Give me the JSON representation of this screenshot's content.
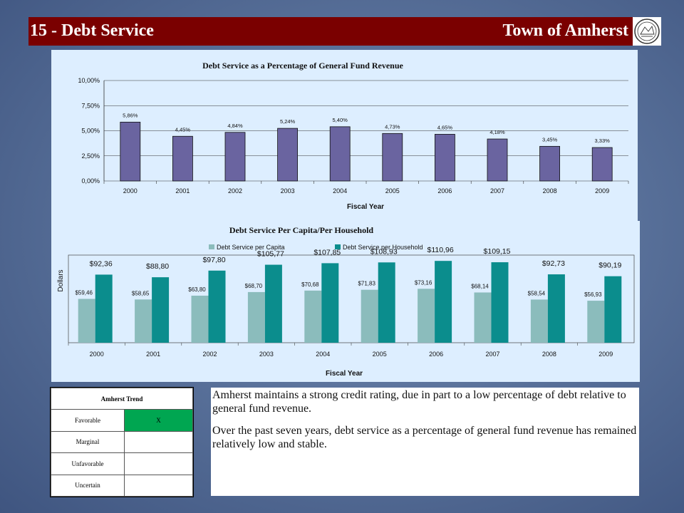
{
  "header": {
    "title": "15 - Debt Service",
    "town": "Town of Amherst",
    "seal_icon": "town-seal-icon"
  },
  "chart_data": [
    {
      "type": "bar",
      "title": "Debt Service as a Percentage of General Fund Revenue",
      "xlabel": "Fiscal Year",
      "ylabel": "",
      "categories": [
        "2000",
        "2001",
        "2002",
        "2003",
        "2004",
        "2005",
        "2006",
        "2007",
        "2008",
        "2009"
      ],
      "values": [
        5.86,
        4.45,
        4.84,
        5.24,
        5.4,
        4.73,
        4.65,
        4.18,
        3.45,
        3.33
      ],
      "data_labels": [
        "5,86%",
        "4,45%",
        "4,84%",
        "5,24%",
        "5,40%",
        "4,73%",
        "4,65%",
        "4,18%",
        "3,45%",
        "3,33%"
      ],
      "ylim": [
        0,
        10
      ],
      "yticks": [
        0,
        2.5,
        5,
        7.5,
        10
      ],
      "ytick_labels": [
        "0,00%",
        "2,50%",
        "5,00%",
        "7,50%",
        "10,00%"
      ],
      "grid": true,
      "color": "#6a64a0"
    },
    {
      "type": "bar",
      "title": "Debt Service Per Capita/Per Household",
      "xlabel": "Fiscal Year",
      "ylabel": "Dollars",
      "legend": "top",
      "categories": [
        "2000",
        "2001",
        "2002",
        "2003",
        "2004",
        "2005",
        "2006",
        "2007",
        "2008",
        "2009"
      ],
      "ylim": [
        0,
        115
      ],
      "series": [
        {
          "name": "Debt Service per Capita",
          "color": "#8bbcbc",
          "values": [
            59.46,
            58.65,
            63.8,
            68.7,
            70.68,
            71.83,
            73.16,
            68.14,
            58.54,
            56.93
          ],
          "labels": [
            "$59,46",
            "$58,65",
            "$63,80",
            "$68,70",
            "$70,68",
            "$71,83",
            "$73,16",
            "$68,14",
            "$58,54",
            "$56,93"
          ]
        },
        {
          "name": "Debt Service per Household",
          "color": "#0b8d8d",
          "values": [
            92.36,
            88.8,
            97.8,
            105.77,
            107.85,
            108.93,
            110.96,
            109.15,
            92.73,
            90.19
          ],
          "labels": [
            "$92,36",
            "$88,80",
            "$97,80",
            "$105,77",
            "$107,85",
            "$108,93",
            "$110,96",
            "$109,15",
            "$92,73",
            "$90,19"
          ]
        }
      ]
    }
  ],
  "trend": {
    "header": "Amherst Trend",
    "rows": [
      {
        "label": "Favorable",
        "mark": "X"
      },
      {
        "label": "Marginal",
        "mark": ""
      },
      {
        "label": "Unfavorable",
        "mark": ""
      },
      {
        "label": "Uncertain",
        "mark": ""
      }
    ]
  },
  "commentary": {
    "p1": "Amherst maintains a strong credit rating, due in part to a low percentage of debt relative to general fund revenue.",
    "p2": "Over the past seven years, debt service as a percentage of general fund revenue has remained relatively low and stable."
  }
}
